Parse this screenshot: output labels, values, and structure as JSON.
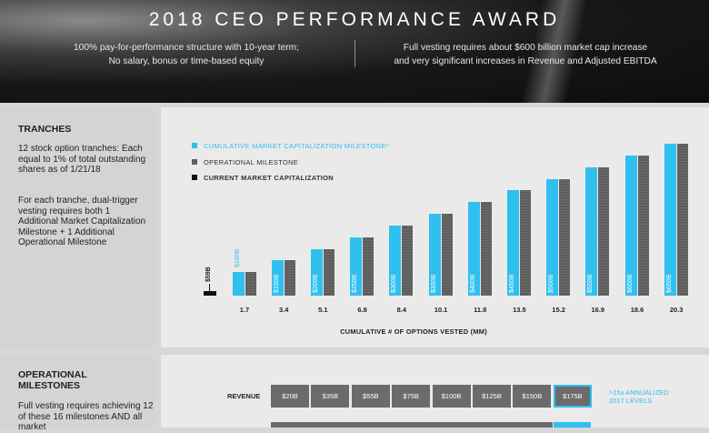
{
  "header": {
    "title": "2018 CEO PERFORMANCE AWARD",
    "left_line1": "100% pay-for-performance structure with 10-year term;",
    "left_line2": "No salary, bonus or time-based equity",
    "right_line1": "Full vesting requires about $600 billion market cap increase",
    "right_line2": "and very significant increases in Revenue and Adjusted EBITDA"
  },
  "tranches": {
    "title": "TRANCHES",
    "text1": "12 stock option tranches: Each equal to 1% of total outstanding shares as of 1/21/18",
    "text2": "For each tranche, dual-trigger vesting requires both 1 Additional Market Capitalization Milestone + 1 Additional Operational Milestone"
  },
  "operational": {
    "title_line1": "OPERATIONAL",
    "title_line2": "MILESTONES",
    "text": "Full vesting requires achieving 12 of these 16 milestones AND all market"
  },
  "colors": {
    "market_cap": "#2fc0f0",
    "operational": "#5e5e5e",
    "current": "#111111"
  },
  "chart_data": {
    "type": "bar",
    "legend": [
      "CUMULATIVE MARKET CAPITALIZATION MILESTONE¹",
      "OPERATIONAL MILESTONE",
      "CURRENT MARKET CAPITALIZATION"
    ],
    "legend_position": "top-left",
    "xlabel": "CUMULATIVE # OF OPTIONS VESTED (MM)",
    "categories": [
      "1.7",
      "3.4",
      "5.1",
      "6.8",
      "8.4",
      "10.1",
      "11.8",
      "13.5",
      "15.2",
      "16.9",
      "18.6",
      "20.3"
    ],
    "current_market_cap": {
      "value": 59,
      "label": "$59B"
    },
    "series": [
      {
        "name": "CUMULATIVE MARKET CAPITALIZATION MILESTONE¹",
        "values": [
          100,
          150,
          200,
          250,
          300,
          350,
          400,
          450,
          500,
          550,
          600,
          650
        ],
        "labels": [
          "$100B",
          "$150B",
          "$200B",
          "$250B",
          "$300B",
          "$350B",
          "$400B",
          "$450B",
          "$500B",
          "$550B",
          "$600B",
          "$650B"
        ]
      },
      {
        "name": "OPERATIONAL MILESTONE",
        "values": [
          100,
          150,
          200,
          250,
          300,
          350,
          400,
          450,
          500,
          550,
          600,
          650
        ]
      }
    ],
    "ylim": [
      0,
      650
    ],
    "grid": false
  },
  "revenue": {
    "label": "REVENUE",
    "cells": [
      "$20B",
      "$35B",
      "$55B",
      "$75B",
      "$100B",
      "$125B",
      "$150B",
      "$175B"
    ],
    "highlight_index": 7,
    "note_line1": ">15x ANNUALIZED",
    "note_line2": "2017 LEVELS"
  }
}
